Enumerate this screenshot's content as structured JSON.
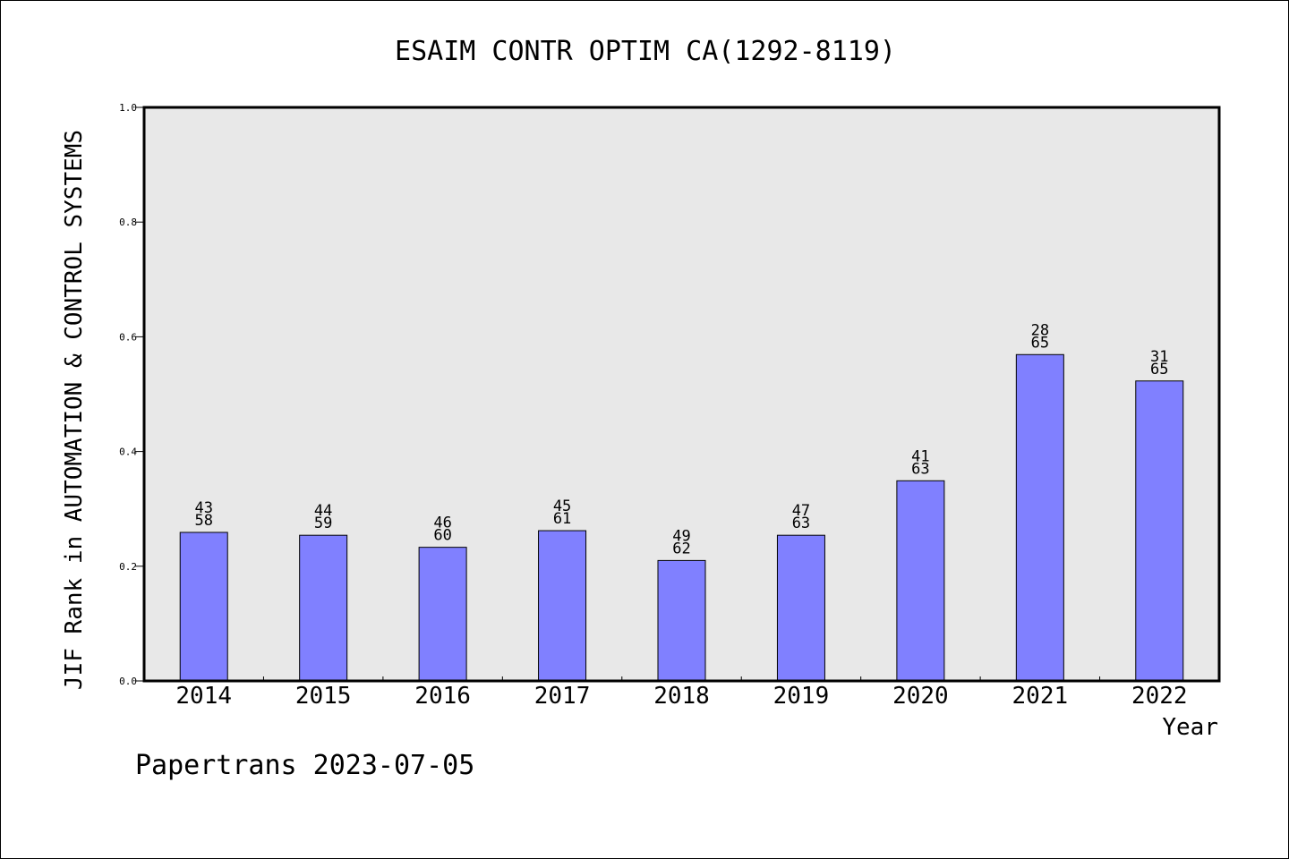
{
  "chart_data": {
    "type": "bar",
    "title": "ESAIM CONTR OPTIM CA(1292-8119)",
    "xlabel": "Year",
    "ylabel": "JIF Rank in AUTOMATION & CONTROL SYSTEMS",
    "ylim": [
      0,
      1.0
    ],
    "yticks": [
      "0.0",
      "0.2",
      "0.4",
      "0.6",
      "0.8",
      "1.0"
    ],
    "categories": [
      "2014",
      "2015",
      "2016",
      "2017",
      "2018",
      "2019",
      "2020",
      "2021",
      "2022"
    ],
    "values": [
      0.259,
      0.254,
      0.233,
      0.262,
      0.21,
      0.254,
      0.349,
      0.569,
      0.523
    ],
    "rank": [
      "43",
      "44",
      "46",
      "45",
      "49",
      "47",
      "41",
      "28",
      "31"
    ],
    "total": [
      "58",
      "59",
      "60",
      "61",
      "62",
      "63",
      "63",
      "65",
      "65"
    ],
    "grid": false,
    "colors": {
      "bar": "#8080ff",
      "plot_bg": "#e8e8e8"
    }
  },
  "footer": "Papertrans 2023-07-05"
}
